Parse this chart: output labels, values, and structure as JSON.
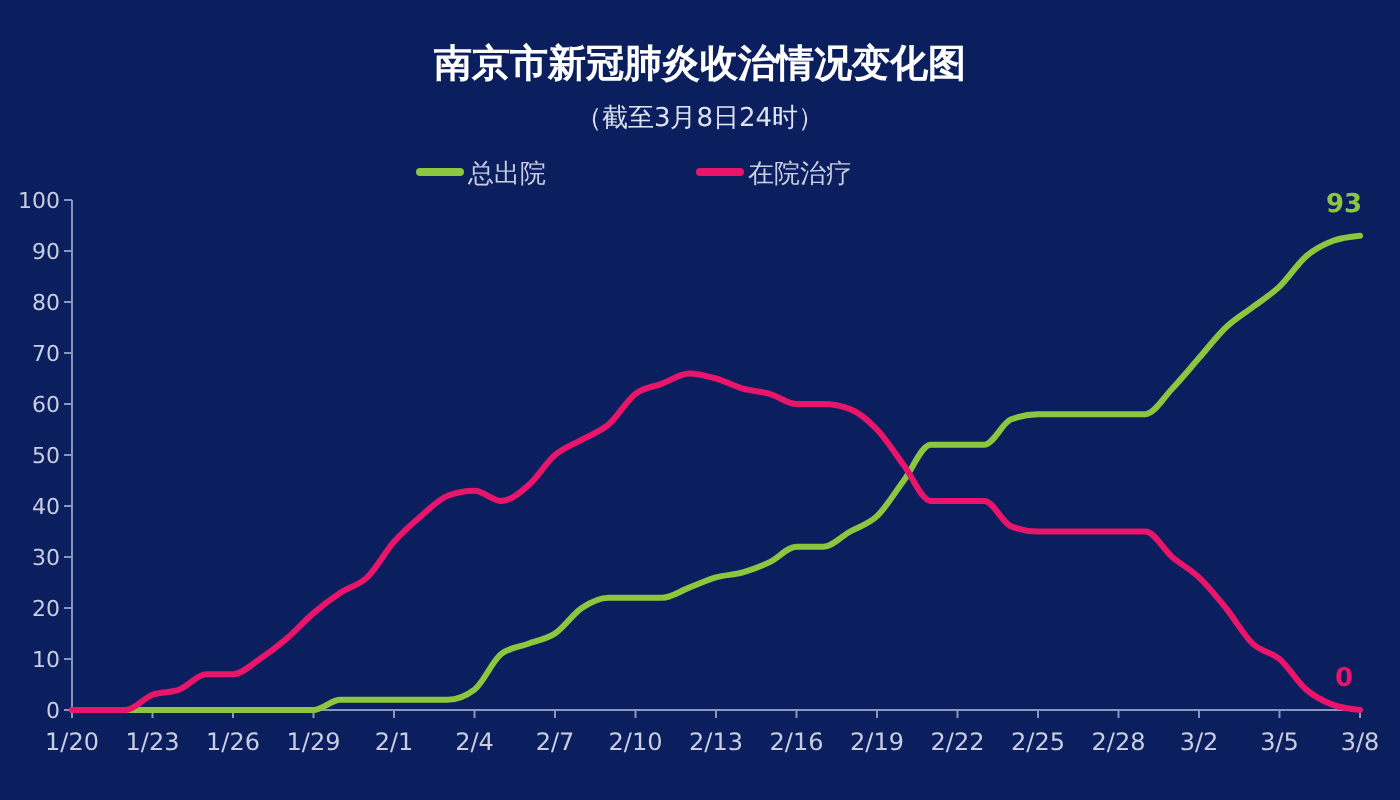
{
  "chart_data": {
    "type": "line",
    "title": "南京市新冠肺炎收治情况变化图",
    "subtitle": "（截至3月8日24时）",
    "x": [
      "--01-20",
      "--01-21",
      "--01-22",
      "--01-23",
      "--01-24",
      "--01-25",
      "--01-26",
      "--01-27",
      "--01-28",
      "--01-29",
      "--01-30",
      "--01-31",
      "--02-01",
      "--02-02",
      "--02-03",
      "--02-04",
      "--02-05",
      "--02-06",
      "--02-07",
      "--02-08",
      "--02-09",
      "--02-10",
      "--02-11",
      "--02-12",
      "--02-13",
      "--02-14",
      "--02-15",
      "--02-16",
      "--02-17",
      "--02-18",
      "--02-19",
      "--02-20",
      "--02-21",
      "--02-22",
      "--02-23",
      "--02-24",
      "--02-25",
      "--02-26",
      "--02-27",
      "--02-28",
      "--02-29",
      "--03-01",
      "--03-02",
      "--03-03",
      "--03-04",
      "--03-05",
      "--03-06",
      "--03-07",
      "--03-08"
    ],
    "series": [
      {
        "name": "总出院",
        "color": "#8cc63f",
        "values": [
          0,
          0,
          0,
          0,
          0,
          0,
          0,
          0,
          0,
          0,
          2,
          2,
          2,
          2,
          2,
          4,
          11,
          13,
          15,
          20,
          22,
          22,
          22,
          24,
          26,
          27,
          29,
          32,
          32,
          35,
          38,
          45,
          52,
          52,
          52,
          57,
          58,
          58,
          58,
          58,
          58,
          63,
          69,
          75,
          79,
          83,
          89,
          92,
          93
        ],
        "value_labels": [
          null,
          null,
          null,
          null,
          null,
          null,
          null,
          null,
          null,
          null,
          null,
          null,
          null,
          null,
          null,
          null,
          null,
          null,
          null,
          null,
          null,
          null,
          null,
          null,
          null,
          null,
          null,
          null,
          null,
          null,
          null,
          null,
          null,
          null,
          null,
          null,
          null,
          null,
          null,
          null,
          null,
          null,
          null,
          null,
          null,
          null,
          null,
          null,
          "93"
        ]
      },
      {
        "name": "在院治疗",
        "color": "#e8156b",
        "values": [
          0,
          0,
          0,
          3,
          4,
          7,
          7,
          10,
          14,
          19,
          23,
          26,
          33,
          38,
          42,
          43,
          41,
          44,
          50,
          53,
          56,
          62,
          64,
          66,
          65,
          63,
          62,
          60,
          60,
          59,
          55,
          48,
          41,
          41,
          41,
          36,
          35,
          35,
          35,
          35,
          35,
          30,
          26,
          20,
          13,
          10,
          4,
          1,
          0
        ],
        "value_labels": [
          null,
          null,
          null,
          null,
          null,
          null,
          null,
          null,
          null,
          null,
          null,
          null,
          null,
          null,
          null,
          null,
          null,
          null,
          null,
          null,
          null,
          null,
          null,
          null,
          null,
          null,
          null,
          null,
          null,
          null,
          null,
          null,
          null,
          null,
          null,
          null,
          null,
          null,
          null,
          null,
          null,
          null,
          null,
          null,
          null,
          null,
          null,
          null,
          "0"
        ]
      }
    ],
    "xlim": [
      "--01-20",
      "--03-08"
    ],
    "xticks": [
      {
        "value": "--01-20",
        "label": "1/20"
      },
      {
        "value": "--01-23",
        "label": "1/23"
      },
      {
        "value": "--01-26",
        "label": "1/26"
      },
      {
        "value": "--01-29",
        "label": "1/29"
      },
      {
        "value": "--02-01",
        "label": "2/1"
      },
      {
        "value": "--02-04",
        "label": "2/4"
      },
      {
        "value": "--02-07",
        "label": "2/7"
      },
      {
        "value": "--02-10",
        "label": "2/10"
      },
      {
        "value": "--02-13",
        "label": "2/13"
      },
      {
        "value": "--02-16",
        "label": "2/16"
      },
      {
        "value": "--02-19",
        "label": "2/19"
      },
      {
        "value": "--02-22",
        "label": "2/22"
      },
      {
        "value": "--02-25",
        "label": "2/25"
      },
      {
        "value": "--02-28",
        "label": "2/28"
      },
      {
        "value": "--03-02",
        "label": "3/2"
      },
      {
        "value": "--03-05",
        "label": "3/5"
      },
      {
        "value": "--03-08",
        "label": "3/8"
      }
    ],
    "ylim": [
      0,
      100
    ],
    "yticks": [
      0,
      10,
      20,
      30,
      40,
      50,
      60,
      70,
      80,
      90,
      100
    ],
    "grid": false,
    "legend": "top",
    "marker": "none",
    "line_style": "solid"
  }
}
